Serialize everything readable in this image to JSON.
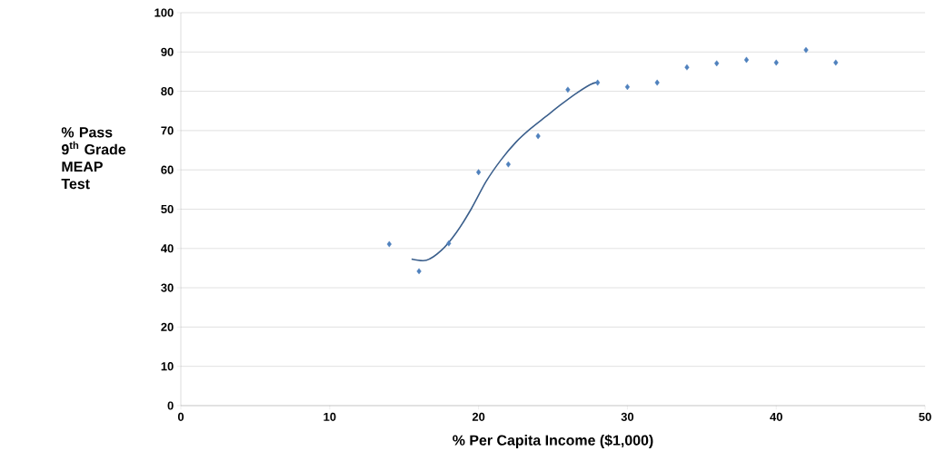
{
  "chart_data": {
    "type": "scatter",
    "xlabel": "% Per Capita Income ($1,000)",
    "ylabel": "% Pass 9$^{th}$ Grade MEAP Test",
    "xlim": [
      0,
      50
    ],
    "xticks": [
      0,
      10,
      20,
      30,
      40,
      50
    ],
    "ylim": [
      0,
      100
    ],
    "yticks": [
      0,
      10,
      20,
      30,
      40,
      50,
      60,
      70,
      80,
      90,
      100
    ],
    "grid": "y",
    "marker": "diamond",
    "series": [
      {
        "color": "#4f81bd",
        "x": [
          14,
          16,
          18,
          20,
          22,
          24,
          26,
          28,
          30,
          32,
          34,
          36,
          38,
          40,
          42,
          44
        ],
        "values": [
          41.1,
          34.2,
          41.3,
          59.4,
          61.4,
          68.6,
          80.4,
          82.2,
          81.1,
          82.2,
          86.1,
          87.1,
          88.0,
          87.3,
          90.5,
          87.3
        ]
      },
      {
        "type": "line",
        "color": "#3b5f8c",
        "marker": "none",
        "x": [
          15.5,
          16.5,
          17.5,
          18.5,
          19.5,
          20.5,
          21.5,
          22.5,
          23.5,
          24.5,
          25.5,
          26.5,
          27.5,
          28
        ],
        "values": [
          37.3,
          37.0,
          39.5,
          44,
          50,
          57,
          62.5,
          67,
          70.5,
          73.5,
          76.5,
          79.3,
          81.7,
          82.3
        ]
      }
    ]
  }
}
